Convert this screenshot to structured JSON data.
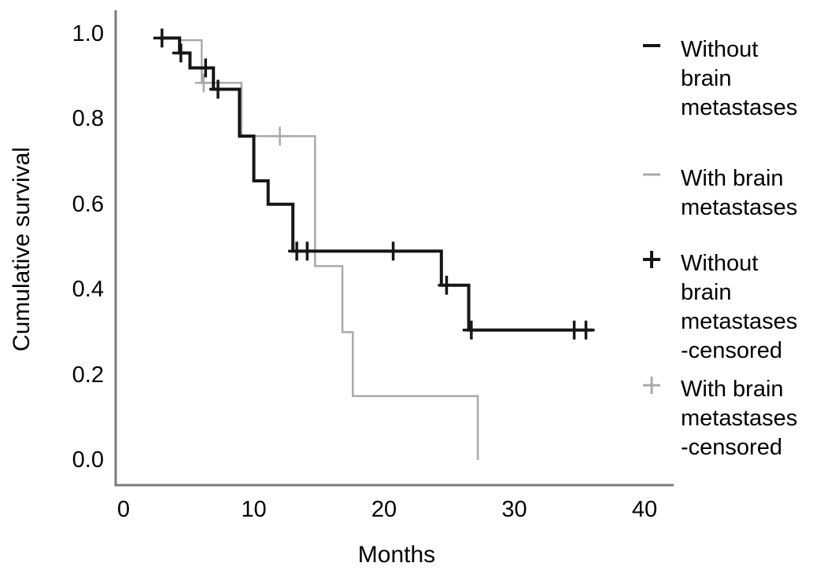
{
  "figure": {
    "y_axis": {
      "title": "Cumulative survival",
      "tick_labels": [
        "1.0",
        "0.8",
        "0.6",
        "0.4",
        "0.2",
        "0.0"
      ],
      "tick_values": [
        1.0,
        0.8,
        0.6,
        0.4,
        0.2,
        0.0
      ]
    },
    "x_axis": {
      "title": "Months",
      "tick_labels": [
        "0",
        "10",
        "20",
        "30",
        "40"
      ],
      "tick_values": [
        0,
        10,
        20,
        30,
        40
      ]
    }
  },
  "colors": {
    "without_bm": "#161616",
    "with_bm": "#a9a9a9",
    "axis": "#7a7a7a",
    "text": "#000000",
    "background": "#ffffff"
  },
  "legend": {
    "items": [
      {
        "id": "without-bm",
        "symbol": "dash",
        "color": "#161616",
        "lines": [
          "Without",
          "brain",
          "metastases"
        ]
      },
      {
        "id": "with-bm",
        "symbol": "dash",
        "color": "#a9a9a9",
        "lines": [
          "With brain",
          "metastases"
        ]
      },
      {
        "id": "without-bm-censored",
        "symbol": "plus",
        "color": "#161616",
        "lines": [
          "Without",
          "brain",
          "metastases",
          "-censored"
        ]
      },
      {
        "id": "with-bm-censored",
        "symbol": "plus",
        "color": "#a9a9a9",
        "lines": [
          "With brain",
          "metastases",
          "-censored"
        ]
      }
    ]
  },
  "chart_data": {
    "type": "line",
    "subtype": "kaplan-meier-step",
    "title": "",
    "xlabel": "Months",
    "ylabel": "Cumulative survival",
    "xlim": [
      0,
      42
    ],
    "ylim": [
      0.0,
      1.0
    ],
    "x_ticks": [
      0,
      10,
      20,
      30,
      40
    ],
    "y_ticks": [
      1.0,
      0.8,
      0.6,
      0.4,
      0.2,
      0.0
    ],
    "grid": false,
    "legend_position": "right",
    "censored_marker": "+",
    "series": [
      {
        "name": "Without brain metastases",
        "color": "#161616",
        "line_width": 4,
        "step_points": [
          [
            2.8,
            0.99
          ],
          [
            4.3,
            0.955
          ],
          [
            5.1,
            0.92
          ],
          [
            6.9,
            0.87
          ],
          [
            8.9,
            0.76
          ],
          [
            10.0,
            0.655
          ],
          [
            11.1,
            0.6
          ],
          [
            13.0,
            0.49
          ],
          [
            24.4,
            0.41
          ],
          [
            26.5,
            0.305
          ]
        ],
        "end_x": 36.0,
        "censored_marks": [
          [
            2.95,
            0.99
          ],
          [
            4.4,
            0.955
          ],
          [
            6.3,
            0.92
          ],
          [
            7.25,
            0.87
          ],
          [
            13.3,
            0.49
          ],
          [
            14.1,
            0.49
          ],
          [
            20.7,
            0.49
          ],
          [
            24.8,
            0.41
          ],
          [
            26.7,
            0.305
          ],
          [
            34.6,
            0.305
          ],
          [
            35.5,
            0.305
          ]
        ]
      },
      {
        "name": "With brain metastases",
        "color": "#a9a9a9",
        "line_width": 2.5,
        "step_points": [
          [
            4.3,
            0.985
          ],
          [
            6.0,
            0.885
          ],
          [
            9.05,
            0.76
          ],
          [
            14.7,
            0.455
          ],
          [
            16.8,
            0.3
          ],
          [
            17.6,
            0.15
          ],
          [
            27.2,
            0.0
          ]
        ],
        "end_x": 27.2,
        "censored_marks": [
          [
            6.15,
            0.885
          ],
          [
            12.0,
            0.76
          ]
        ]
      }
    ]
  }
}
